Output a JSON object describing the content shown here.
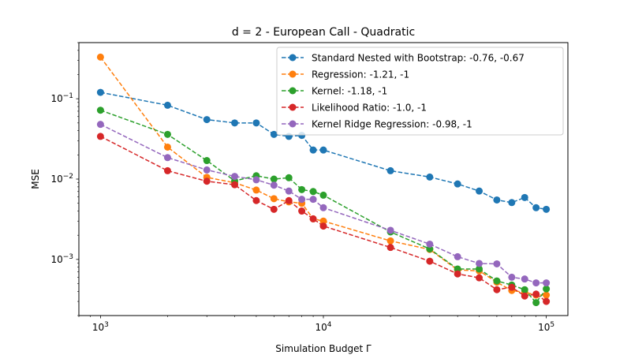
{
  "chart_data": {
    "type": "line",
    "title": "d = 2 - European Call - Quadratic",
    "xlabel": "Simulation Budget Γ",
    "ylabel": "MSE",
    "xscale": "log",
    "yscale": "log",
    "xlim": [
      800,
      125000
    ],
    "ylim": [
      0.0002,
      0.5
    ],
    "grid": false,
    "legend_position": "top-right",
    "x_ticks": [
      {
        "value": 1000,
        "base": "10",
        "exp": "3"
      },
      {
        "value": 10000,
        "base": "10",
        "exp": "4"
      },
      {
        "value": 100000,
        "base": "10",
        "exp": "5"
      }
    ],
    "y_ticks": [
      {
        "value": 0.001,
        "base": "10",
        "exp": "−3"
      },
      {
        "value": 0.01,
        "base": "10",
        "exp": "−2"
      },
      {
        "value": 0.1,
        "base": "10",
        "exp": "−1"
      }
    ],
    "x": [
      1000,
      2000,
      3000,
      4000,
      5000,
      6000,
      7000,
      8000,
      9000,
      10000,
      20000,
      30000,
      40000,
      50000,
      60000,
      70000,
      80000,
      90000,
      100000
    ],
    "series": [
      {
        "name": "Standard Nested with Bootstrap: -0.76, -0.67",
        "color": "#1f77b4",
        "values": [
          0.12,
          0.083,
          0.055,
          0.05,
          0.05,
          0.036,
          0.034,
          0.035,
          0.023,
          0.023,
          0.0127,
          0.0106,
          0.0087,
          0.0071,
          0.0055,
          0.0051,
          0.0059,
          0.0044,
          0.0042
        ]
      },
      {
        "name": "Regression: -1.21, -1",
        "color": "#ff7f0e",
        "values": [
          0.33,
          0.025,
          0.0105,
          0.009,
          0.0073,
          0.0057,
          0.0052,
          0.005,
          0.0032,
          0.003,
          0.0017,
          0.00133,
          0.00074,
          0.00072,
          0.00052,
          0.00041,
          0.00039,
          0.00036,
          0.00036
        ]
      },
      {
        "name": "Kernel: -1.18, -1",
        "color": "#2ca02c",
        "values": [
          0.072,
          0.036,
          0.017,
          0.0095,
          0.011,
          0.01,
          0.0104,
          0.0074,
          0.007,
          0.0063,
          0.0022,
          0.00135,
          0.00076,
          0.00076,
          0.00054,
          0.00048,
          0.00042,
          0.00029,
          0.00043
        ]
      },
      {
        "name": "Likelihood Ratio: -1.0, -1",
        "color": "#d62728",
        "values": [
          0.034,
          0.0127,
          0.0094,
          0.0085,
          0.0054,
          0.0042,
          0.0054,
          0.004,
          0.0032,
          0.0026,
          0.00141,
          0.00095,
          0.00066,
          0.00059,
          0.00042,
          0.00045,
          0.00035,
          0.00037,
          0.0003
        ]
      },
      {
        "name": "Kernel Ridge Regression: -0.98, -1",
        "color": "#9467bd",
        "values": [
          0.048,
          0.0185,
          0.013,
          0.0108,
          0.0098,
          0.0084,
          0.0071,
          0.0056,
          0.0056,
          0.0044,
          0.0023,
          0.00155,
          0.00108,
          0.00089,
          0.00088,
          0.0006,
          0.00057,
          0.00051,
          0.00051
        ]
      }
    ]
  }
}
